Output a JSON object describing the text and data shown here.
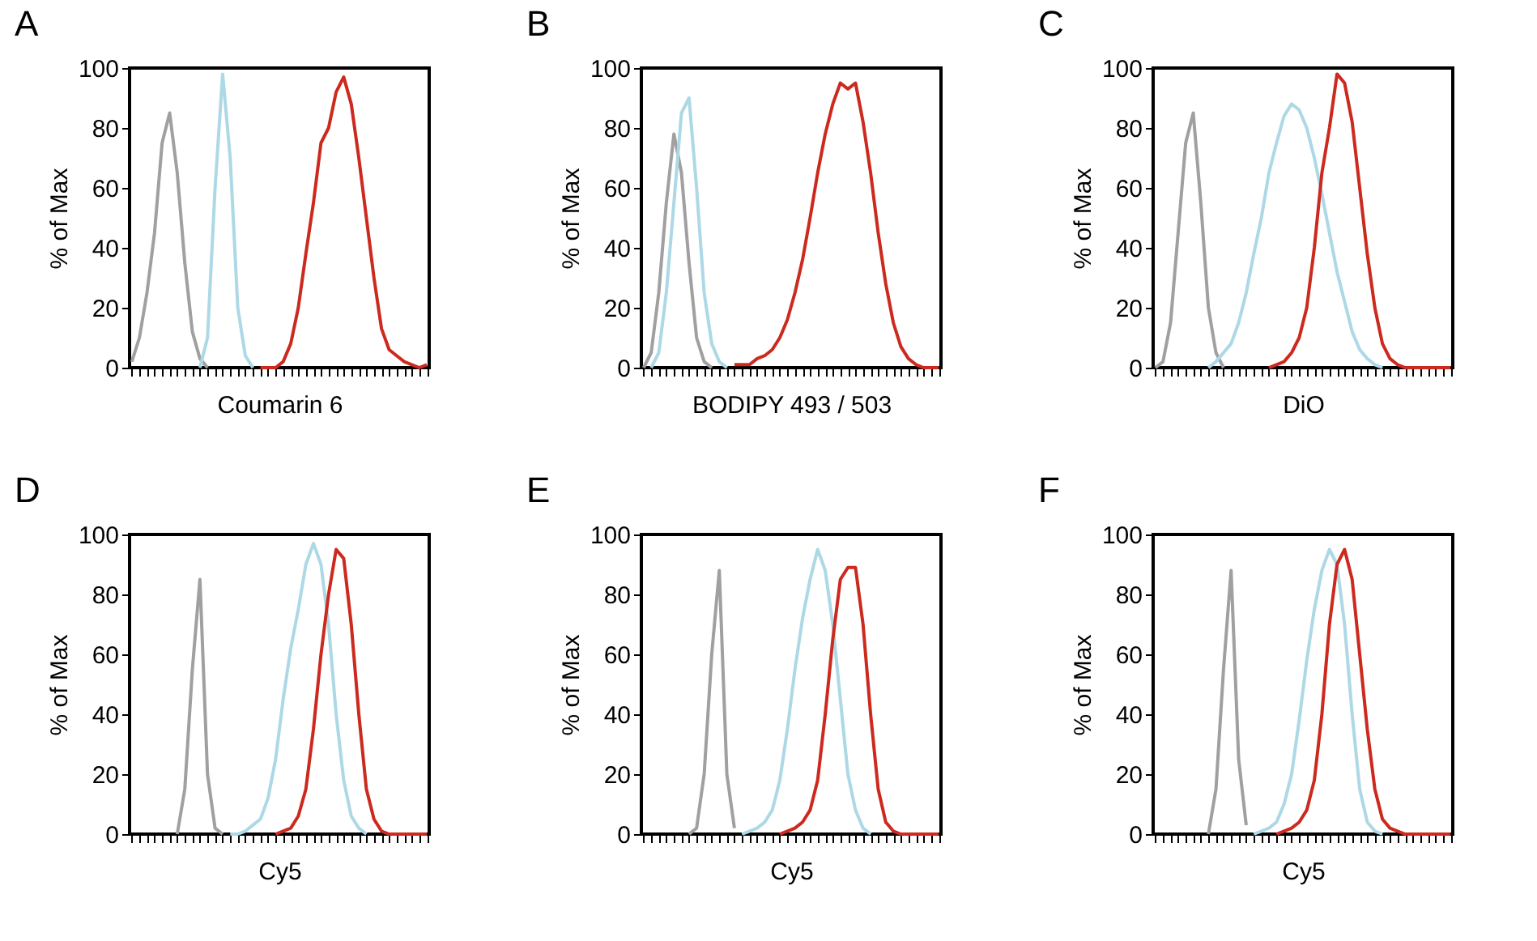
{
  "chart_data": [
    {
      "type": "line",
      "title": "A",
      "xlabel": "Coumarin 6",
      "ylabel": "% of Max",
      "ylim": [
        0,
        100
      ],
      "yticks": [
        0,
        20,
        40,
        60,
        80,
        100
      ],
      "tick_labels": "y",
      "grid": false,
      "categories": [
        null,
        null,
        null,
        null,
        null,
        null,
        null,
        null,
        null,
        null,
        null,
        null,
        null,
        null,
        null,
        null,
        null,
        null,
        null,
        null,
        null,
        null,
        null,
        null,
        null,
        null,
        null,
        null,
        null,
        null,
        null,
        null,
        null,
        null,
        null,
        null,
        null,
        null,
        null,
        null
      ],
      "series": [
        {
          "color": "#a0a0a0",
          "values": [
            2,
            10,
            25,
            45,
            75,
            85,
            65,
            35,
            12,
            3,
            0,
            null,
            null,
            null,
            null,
            null,
            null,
            null,
            null,
            null,
            null,
            null,
            null,
            null,
            null,
            null,
            null,
            null,
            null,
            null,
            null,
            null,
            null,
            null,
            null,
            null,
            null,
            null,
            null,
            null
          ]
        },
        {
          "color": "#add8e6",
          "values": [
            null,
            null,
            null,
            null,
            null,
            null,
            null,
            null,
            null,
            0,
            10,
            60,
            98,
            70,
            20,
            4,
            0,
            null,
            null,
            null,
            null,
            null,
            null,
            null,
            null,
            null,
            null,
            null,
            null,
            null,
            null,
            null,
            null,
            null,
            null,
            null,
            null,
            null,
            null,
            null
          ]
        },
        {
          "color": "#cc2a1e",
          "values": [
            null,
            null,
            null,
            null,
            null,
            null,
            null,
            null,
            null,
            null,
            null,
            null,
            null,
            null,
            null,
            null,
            null,
            0,
            0,
            0,
            2,
            8,
            20,
            38,
            55,
            75,
            80,
            92,
            97,
            88,
            70,
            50,
            30,
            13,
            6,
            4,
            2,
            1,
            0,
            1
          ]
        }
      ]
    },
    {
      "type": "line",
      "title": "B",
      "xlabel": "BODIPY 493 / 503",
      "ylabel": "% of Max",
      "ylim": [
        0,
        100
      ],
      "yticks": [
        0,
        20,
        40,
        60,
        80,
        100
      ],
      "tick_labels": "y",
      "grid": false,
      "categories": [
        null,
        null,
        null,
        null,
        null,
        null,
        null,
        null,
        null,
        null,
        null,
        null,
        null,
        null,
        null,
        null,
        null,
        null,
        null,
        null,
        null,
        null,
        null,
        null,
        null,
        null,
        null,
        null,
        null,
        null,
        null,
        null,
        null,
        null,
        null,
        null,
        null,
        null,
        null,
        null
      ],
      "series": [
        {
          "color": "#a0a0a0",
          "values": [
            0,
            5,
            25,
            55,
            78,
            65,
            35,
            10,
            2,
            0,
            null,
            null,
            null,
            null,
            null,
            null,
            null,
            null,
            null,
            null,
            null,
            null,
            null,
            null,
            null,
            null,
            null,
            null,
            null,
            null,
            null,
            null,
            null,
            null,
            null,
            null,
            null,
            null,
            null,
            null
          ]
        },
        {
          "color": "#add8e6",
          "values": [
            null,
            0,
            5,
            25,
            55,
            85,
            90,
            60,
            25,
            8,
            2,
            0,
            null,
            null,
            null,
            null,
            null,
            null,
            null,
            null,
            null,
            null,
            null,
            null,
            null,
            null,
            null,
            null,
            null,
            null,
            null,
            null,
            null,
            null,
            null,
            null,
            null,
            null,
            null,
            null
          ]
        },
        {
          "color": "#cc2a1e",
          "values": [
            null,
            null,
            null,
            null,
            null,
            null,
            null,
            null,
            null,
            null,
            null,
            null,
            1,
            1,
            1,
            3,
            4,
            6,
            10,
            16,
            25,
            36,
            50,
            65,
            78,
            88,
            95,
            93,
            95,
            82,
            65,
            45,
            28,
            15,
            7,
            3,
            1,
            0,
            0,
            0
          ]
        }
      ]
    },
    {
      "type": "line",
      "title": "C",
      "xlabel": "DiO",
      "ylabel": "% of Max",
      "ylim": [
        0,
        100
      ],
      "yticks": [
        0,
        20,
        40,
        60,
        80,
        100
      ],
      "tick_labels": "y",
      "grid": false,
      "categories": [
        null,
        null,
        null,
        null,
        null,
        null,
        null,
        null,
        null,
        null,
        null,
        null,
        null,
        null,
        null,
        null,
        null,
        null,
        null,
        null,
        null,
        null,
        null,
        null,
        null,
        null,
        null,
        null,
        null,
        null,
        null,
        null,
        null,
        null,
        null,
        null,
        null,
        null,
        null,
        null
      ],
      "series": [
        {
          "color": "#a0a0a0",
          "values": [
            0,
            2,
            15,
            45,
            75,
            85,
            55,
            20,
            5,
            0,
            null,
            null,
            null,
            null,
            null,
            null,
            null,
            null,
            null,
            null,
            null,
            null,
            null,
            null,
            null,
            null,
            null,
            null,
            null,
            null,
            null,
            null,
            null,
            null,
            null,
            null,
            null,
            null,
            null,
            null
          ]
        },
        {
          "color": "#add8e6",
          "values": [
            null,
            null,
            null,
            null,
            null,
            null,
            null,
            0,
            2,
            5,
            8,
            15,
            25,
            38,
            50,
            65,
            75,
            84,
            88,
            86,
            80,
            70,
            58,
            45,
            32,
            22,
            12,
            6,
            3,
            1,
            0,
            null,
            null,
            null,
            null,
            null,
            null,
            null,
            null,
            null
          ]
        },
        {
          "color": "#cc2a1e",
          "values": [
            null,
            null,
            null,
            null,
            null,
            null,
            null,
            null,
            null,
            null,
            null,
            null,
            null,
            null,
            null,
            0,
            1,
            2,
            5,
            10,
            20,
            40,
            65,
            80,
            98,
            95,
            82,
            60,
            38,
            20,
            8,
            3,
            1,
            0,
            0,
            0,
            0,
            0,
            0,
            0
          ]
        }
      ]
    },
    {
      "type": "line",
      "title": "D",
      "xlabel": "Cy5",
      "ylabel": "% of Max",
      "ylim": [
        0,
        100
      ],
      "yticks": [
        0,
        20,
        40,
        60,
        80,
        100
      ],
      "tick_labels": "y",
      "grid": false,
      "categories": [
        null,
        null,
        null,
        null,
        null,
        null,
        null,
        null,
        null,
        null,
        null,
        null,
        null,
        null,
        null,
        null,
        null,
        null,
        null,
        null,
        null,
        null,
        null,
        null,
        null,
        null,
        null,
        null,
        null,
        null,
        null,
        null,
        null,
        null,
        null,
        null,
        null,
        null,
        null,
        null
      ],
      "series": [
        {
          "color": "#a0a0a0",
          "values": [
            null,
            null,
            null,
            null,
            null,
            null,
            0,
            15,
            55,
            85,
            20,
            2,
            0,
            null,
            null,
            null,
            null,
            null,
            null,
            null,
            null,
            null,
            null,
            null,
            null,
            null,
            null,
            null,
            null,
            null,
            null,
            null,
            null,
            null,
            null,
            null,
            null,
            null,
            null,
            null
          ]
        },
        {
          "color": "#add8e6",
          "values": [
            null,
            null,
            null,
            null,
            null,
            null,
            null,
            null,
            null,
            null,
            null,
            null,
            null,
            0,
            0,
            1,
            3,
            5,
            12,
            25,
            45,
            62,
            75,
            90,
            97,
            90,
            70,
            40,
            18,
            6,
            2,
            0,
            null,
            null,
            null,
            null,
            null,
            null,
            null,
            null
          ]
        },
        {
          "color": "#cc2a1e",
          "values": [
            null,
            null,
            null,
            null,
            null,
            null,
            null,
            null,
            null,
            null,
            null,
            null,
            null,
            null,
            null,
            null,
            null,
            null,
            null,
            0,
            1,
            2,
            6,
            15,
            35,
            60,
            80,
            95,
            92,
            70,
            40,
            15,
            5,
            1,
            0,
            0,
            0,
            0,
            0,
            0
          ]
        }
      ]
    },
    {
      "type": "line",
      "title": "E",
      "xlabel": "Cy5",
      "ylabel": "% of Max",
      "ylim": [
        0,
        100
      ],
      "yticks": [
        0,
        20,
        40,
        60,
        80,
        100
      ],
      "tick_labels": "y",
      "grid": false,
      "categories": [
        null,
        null,
        null,
        null,
        null,
        null,
        null,
        null,
        null,
        null,
        null,
        null,
        null,
        null,
        null,
        null,
        null,
        null,
        null,
        null,
        null,
        null,
        null,
        null,
        null,
        null,
        null,
        null,
        null,
        null,
        null,
        null,
        null,
        null,
        null,
        null,
        null,
        null,
        null,
        null
      ],
      "series": [
        {
          "color": "#a0a0a0",
          "values": [
            null,
            null,
            null,
            null,
            null,
            null,
            0,
            2,
            20,
            60,
            88,
            20,
            2,
            null,
            null,
            null,
            null,
            null,
            null,
            null,
            null,
            null,
            null,
            null,
            null,
            null,
            null,
            null,
            null,
            null,
            null,
            null,
            null,
            null,
            null,
            null,
            null,
            null,
            null,
            null
          ]
        },
        {
          "color": "#add8e6",
          "values": [
            null,
            null,
            null,
            null,
            null,
            null,
            null,
            null,
            null,
            null,
            null,
            null,
            null,
            0,
            1,
            2,
            4,
            8,
            18,
            35,
            55,
            72,
            85,
            95,
            88,
            70,
            45,
            20,
            8,
            2,
            0,
            null,
            null,
            null,
            null,
            null,
            null,
            null,
            null,
            null
          ]
        },
        {
          "color": "#cc2a1e",
          "values": [
            null,
            null,
            null,
            null,
            null,
            null,
            null,
            null,
            null,
            null,
            null,
            null,
            null,
            null,
            null,
            null,
            null,
            null,
            0,
            1,
            2,
            4,
            8,
            18,
            40,
            65,
            85,
            89,
            89,
            70,
            40,
            15,
            4,
            1,
            0,
            0,
            0,
            0,
            0,
            0
          ]
        }
      ]
    },
    {
      "type": "line",
      "title": "F",
      "xlabel": "Cy5",
      "ylabel": "% of Max",
      "ylim": [
        0,
        100
      ],
      "yticks": [
        0,
        20,
        40,
        60,
        80,
        100
      ],
      "tick_labels": "y",
      "grid": false,
      "categories": [
        null,
        null,
        null,
        null,
        null,
        null,
        null,
        null,
        null,
        null,
        null,
        null,
        null,
        null,
        null,
        null,
        null,
        null,
        null,
        null,
        null,
        null,
        null,
        null,
        null,
        null,
        null,
        null,
        null,
        null,
        null,
        null,
        null,
        null,
        null,
        null,
        null,
        null,
        null,
        null
      ],
      "series": [
        {
          "color": "#a0a0a0",
          "values": [
            null,
            null,
            null,
            null,
            null,
            null,
            null,
            0,
            15,
            55,
            88,
            25,
            3,
            null,
            null,
            null,
            null,
            null,
            null,
            null,
            null,
            null,
            null,
            null,
            null,
            null,
            null,
            null,
            null,
            null,
            null,
            null,
            null,
            null,
            null,
            null,
            null,
            null,
            null,
            null
          ]
        },
        {
          "color": "#add8e6",
          "values": [
            null,
            null,
            null,
            null,
            null,
            null,
            null,
            null,
            null,
            null,
            null,
            null,
            null,
            0,
            1,
            2,
            4,
            10,
            20,
            38,
            58,
            75,
            88,
            95,
            90,
            70,
            40,
            15,
            4,
            1,
            0,
            null,
            null,
            null,
            null,
            null,
            null,
            null,
            null,
            null
          ]
        },
        {
          "color": "#cc2a1e",
          "values": [
            null,
            null,
            null,
            null,
            null,
            null,
            null,
            null,
            null,
            null,
            null,
            null,
            null,
            null,
            null,
            null,
            0,
            1,
            2,
            4,
            8,
            18,
            40,
            70,
            90,
            95,
            85,
            60,
            35,
            15,
            5,
            2,
            1,
            0,
            0,
            0,
            0,
            0,
            0,
            0
          ]
        }
      ]
    }
  ]
}
